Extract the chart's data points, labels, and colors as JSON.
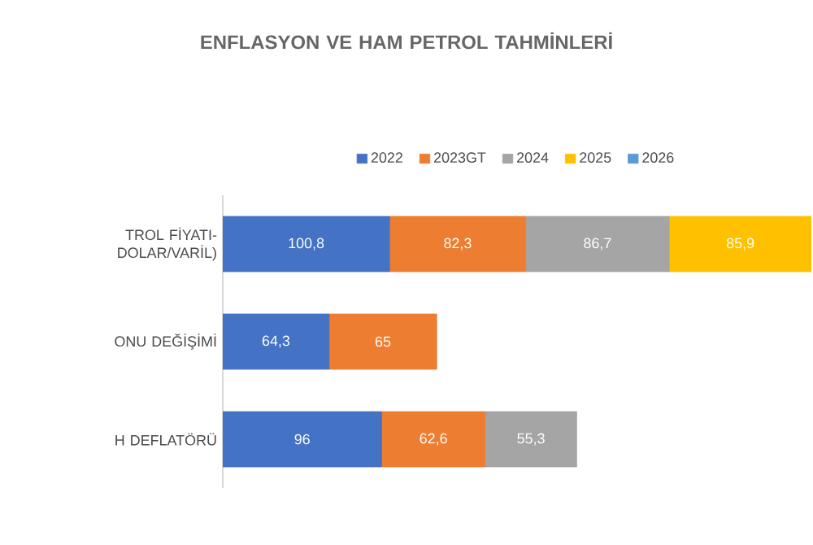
{
  "chart_data": {
    "type": "bar",
    "orientation": "horizontal",
    "stacked": true,
    "title": "ENFLASYON VE HAM PETROL TAHMİNLERİ",
    "categories": [
      "TROL FİYATI- DOLAR/VARİL)",
      "ONU DEĞİŞİMİ",
      "H DEFLATÖRÜ"
    ],
    "series": [
      {
        "name": "2022",
        "color": "#4472c4",
        "values": [
          100.8,
          64.3,
          96
        ],
        "value_labels": [
          "100,8",
          "64,3",
          "96"
        ]
      },
      {
        "name": "2023GT",
        "color": "#ed7d31",
        "values": [
          82.3,
          65,
          62.6
        ],
        "value_labels": [
          "82,3",
          "65",
          "62,6"
        ]
      },
      {
        "name": "2024",
        "color": "#a5a5a5",
        "values": [
          86.7,
          null,
          55.3
        ],
        "value_labels": [
          "86,7",
          null,
          "55,3"
        ]
      },
      {
        "name": "2025",
        "color": "#ffc000",
        "values": [
          85.9,
          null,
          null
        ],
        "value_labels": [
          "85,9",
          null,
          null
        ]
      },
      {
        "name": "2026",
        "color": "#5b9bd5",
        "values": [
          null,
          null,
          null
        ]
      }
    ],
    "legend": "top",
    "tick_labels": "y"
  }
}
